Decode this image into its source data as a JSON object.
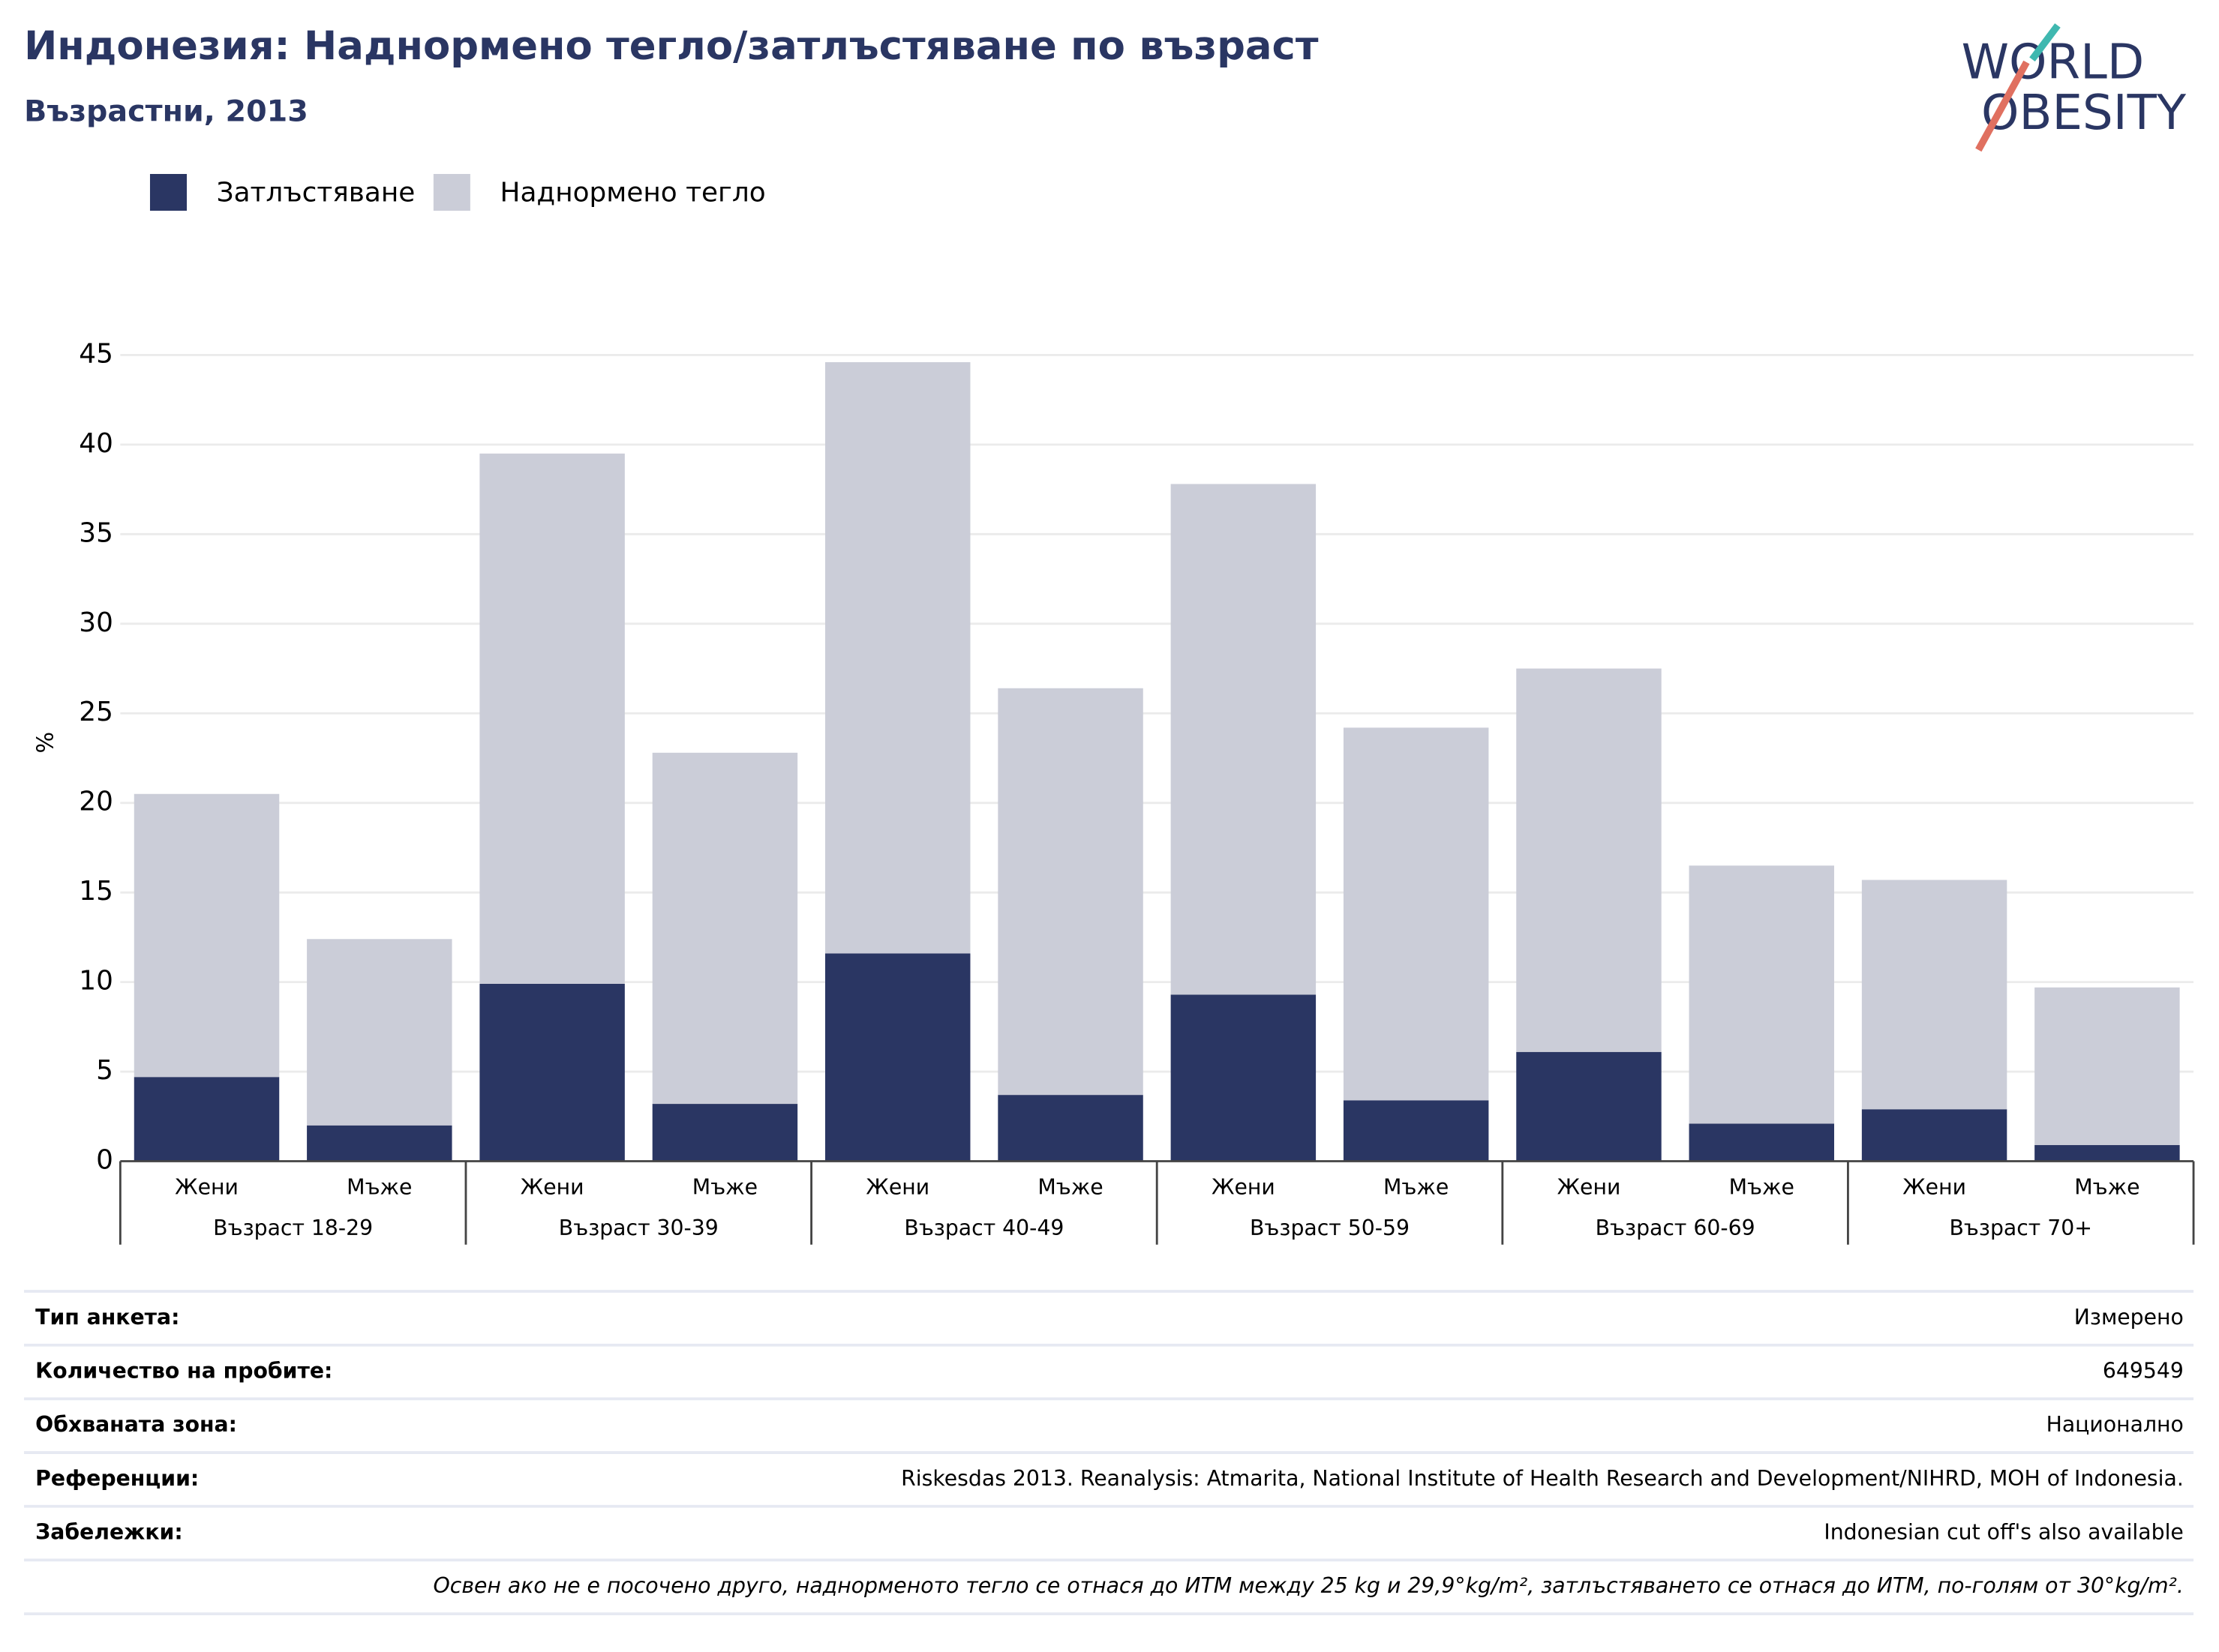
{
  "chart_data": {
    "type": "stacked_bar",
    "title": "Индонезия: Наднормено тегло/затлъстяване по възраст",
    "subtitle": "Възрастни, 2013",
    "logo": [
      "WORLD",
      "OBESITY"
    ],
    "y_label": "%",
    "categories": [
      "Жени",
      "Мъже",
      "Жени",
      "Мъже",
      "Жени",
      "Мъже",
      "Жени",
      "Мъже",
      "Жени",
      "Мъже",
      "Жени",
      "Мъже"
    ],
    "groups": [
      "Възраст 18-29",
      "Възраст 30-39",
      "Възраст 40-49",
      "Възраст 50-59",
      "Възраст 60-69",
      "Възраст 70+"
    ],
    "series": [
      {
        "name": "Затлъстяване",
        "color": "#2a3663",
        "values": [
          4.7,
          2.0,
          9.9,
          3.2,
          11.6,
          3.7,
          9.3,
          3.4,
          6.1,
          2.1,
          2.9,
          0.9
        ]
      },
      {
        "name": "Наднормено тегло",
        "color": "#cbcdd8",
        "values": [
          15.8,
          10.4,
          29.6,
          19.6,
          33.0,
          22.7,
          28.5,
          20.8,
          21.4,
          14.4,
          12.8,
          8.8
        ]
      }
    ],
    "ylim": [
      0,
      45
    ],
    "yticks": [
      0,
      5,
      10,
      15,
      20,
      25,
      30,
      35,
      40,
      45
    ],
    "grid": true,
    "legend": "top-left"
  },
  "table": {
    "rows": [
      [
        "Тип анкета:",
        "Измерено"
      ],
      [
        "Количество на пробите:",
        "649549"
      ],
      [
        "Обхваната зона:",
        "Национално"
      ],
      [
        "Референции:",
        "Riskesdas 2013. Reanalysis: Atmarita, National Institute of Health Research and Development/NIHRD, MOH of Indonesia."
      ],
      [
        "Забележки:",
        "Indonesian cut off's also available"
      ]
    ],
    "note": "Освен ако не е посочено друго, наднорменото тегло се отнася до ИТМ между 25 kg и 29,9°kg/m², затлъстяването се отнася до ИТМ, по-голям от 30°kg/m²."
  }
}
